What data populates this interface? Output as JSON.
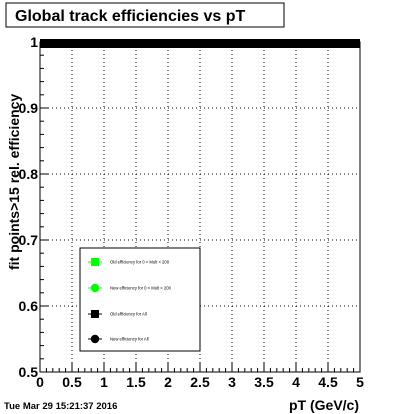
{
  "chart_data": {
    "type": "scatter",
    "title": "Global track efficiencies vs pT",
    "xlabel": "pT (GeV/c)",
    "ylabel": "fit points>15 rel. efficiency",
    "xlim": [
      0,
      5
    ],
    "ylim": [
      0.5,
      1.0
    ],
    "x_ticks": [
      "0",
      "0.5",
      "1",
      "1.5",
      "2",
      "2.5",
      "3",
      "3.5",
      "4",
      "4.5",
      "5"
    ],
    "y_ticks": [
      "0.5",
      "0.6",
      "0.7",
      "0.8",
      "0.9",
      "1"
    ],
    "grid": true,
    "legend_placement": "bottom-left",
    "series": [
      {
        "name": "Old efficiency for 0 < Mult < 200",
        "color": "#00ff00",
        "marker": "square",
        "x": [],
        "y": []
      },
      {
        "name": "New efficiency for 0 < Mult < 200",
        "color": "#00ff00",
        "marker": "circle",
        "x": [],
        "y": []
      },
      {
        "name": "Old efficiency for All",
        "color": "#000000",
        "marker": "square",
        "x": [],
        "y": []
      },
      {
        "name": "New efficiency for All",
        "color": "#000000",
        "marker": "circle",
        "x": [],
        "y": []
      }
    ],
    "band": {
      "y": 1.0,
      "x_range": [
        0,
        5
      ],
      "color": "#000000"
    }
  },
  "footer": {
    "datetime": "Tue Mar 29 15:21:37 2016"
  }
}
